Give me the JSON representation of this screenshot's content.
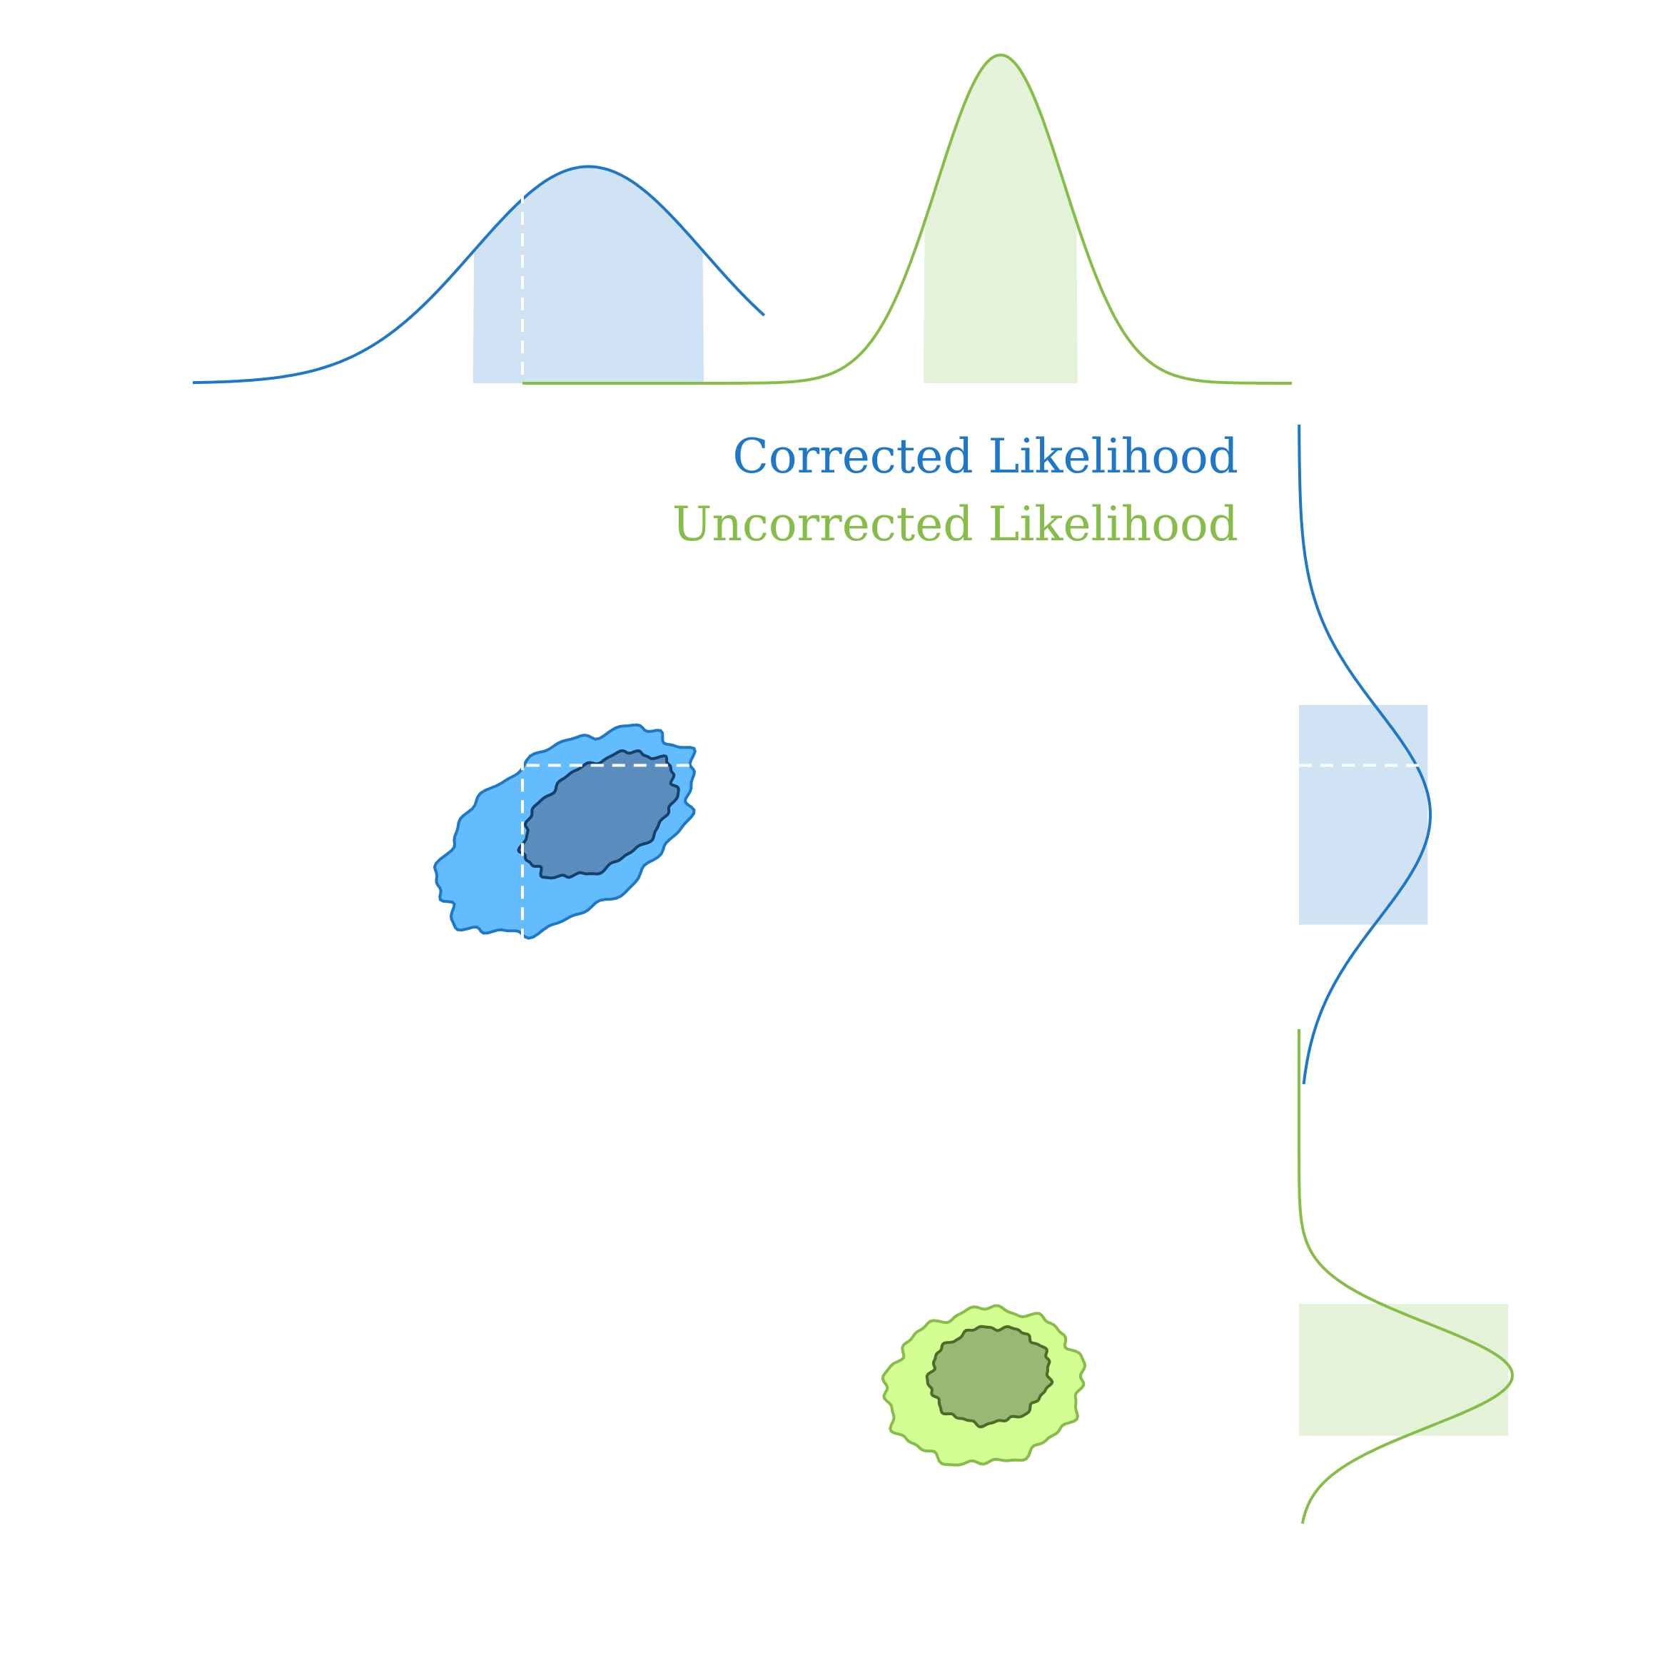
{
  "chart_data": {
    "type": "scatter",
    "title": "",
    "xlabel": "",
    "ylabel": "",
    "grid": false,
    "legend_placement": "top-right",
    "colors": {
      "corrected_line": "#1f77c8",
      "corrected_outer_fill": "#63bcfd",
      "corrected_inner_fill": "#5a8dbe",
      "corrected_inner_line": "#163f6b",
      "corrected_band": "#d0e3f5",
      "uncorrected_line": "#86bd48",
      "uncorrected_outer_fill": "#d4fd94",
      "uncorrected_inner_fill": "#99b874",
      "uncorrected_inner_line": "#4a6d28",
      "uncorrected_band": "#e4f2d8",
      "marker": "#ffffff"
    },
    "series": [
      {
        "name": "Corrected Likelihood",
        "marker": {
          "x": 0.3,
          "y": 0.3
        },
        "x_marginal": {
          "mean": 0.36,
          "sd": 0.105,
          "interval": [
            0.255,
            0.465
          ]
        },
        "y_marginal": {
          "mean": 0.355,
          "sd": 0.095,
          "interval": [
            0.255,
            0.455
          ]
        },
        "contours": {
          "inner": {
            "cx": 0.37,
            "cy": 0.355,
            "rx": 0.155,
            "ry": 0.09,
            "angle": -33
          },
          "outer": {
            "cx": 0.34,
            "cy": 0.37,
            "rx": 0.26,
            "ry": 0.145,
            "angle": -33
          }
        }
      },
      {
        "name": "Uncorrected Likelihood",
        "x_marginal": {
          "mean": 0.735,
          "sd": 0.058,
          "interval": [
            0.665,
            0.805
          ]
        },
        "y_marginal": {
          "mean": 0.865,
          "sd": 0.047,
          "interval": [
            0.805,
            0.865
          ]
        },
        "contours": {
          "inner": {
            "cx": 0.725,
            "cy": 0.865,
            "rx": 0.11,
            "ry": 0.087,
            "angle": -10
          },
          "outer": {
            "cx": 0.72,
            "cy": 0.875,
            "rx": 0.18,
            "ry": 0.14,
            "angle": -10
          }
        }
      }
    ]
  }
}
